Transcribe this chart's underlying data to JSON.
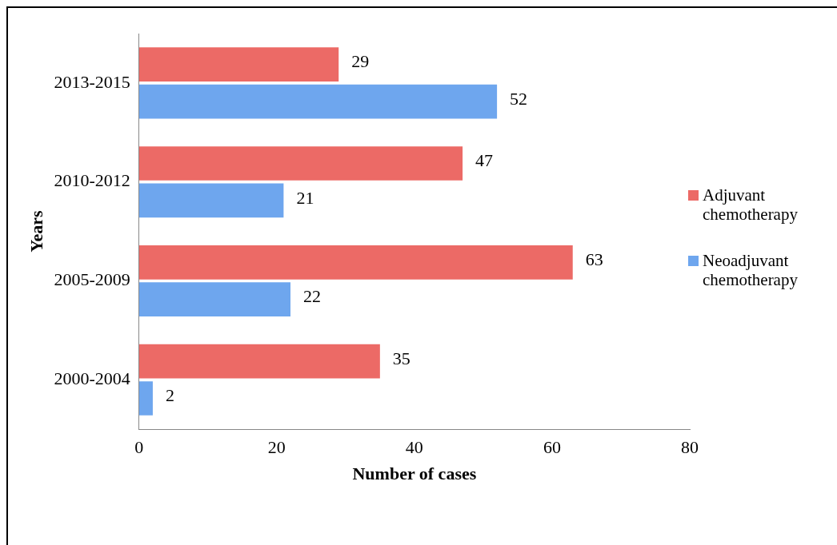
{
  "chart_data": {
    "type": "bar",
    "orientation": "horizontal",
    "xlabel": "Number of cases",
    "ylabel": "Years",
    "categories": [
      "2013-2015",
      "2010-2012",
      "2005-2009",
      "2000-2004"
    ],
    "series": [
      {
        "name": "Adjuvant chemotherapy",
        "color": "#ec6a66",
        "values": [
          29,
          47,
          63,
          35
        ]
      },
      {
        "name": "Neoadjuvant chemotherapy",
        "color": "#6ea6ee",
        "values": [
          52,
          21,
          22,
          2
        ]
      }
    ],
    "xlim": [
      0,
      80
    ],
    "xticks": [
      0,
      20,
      40,
      60,
      80
    ],
    "grid": false,
    "legend": "right",
    "data_labels": true
  }
}
